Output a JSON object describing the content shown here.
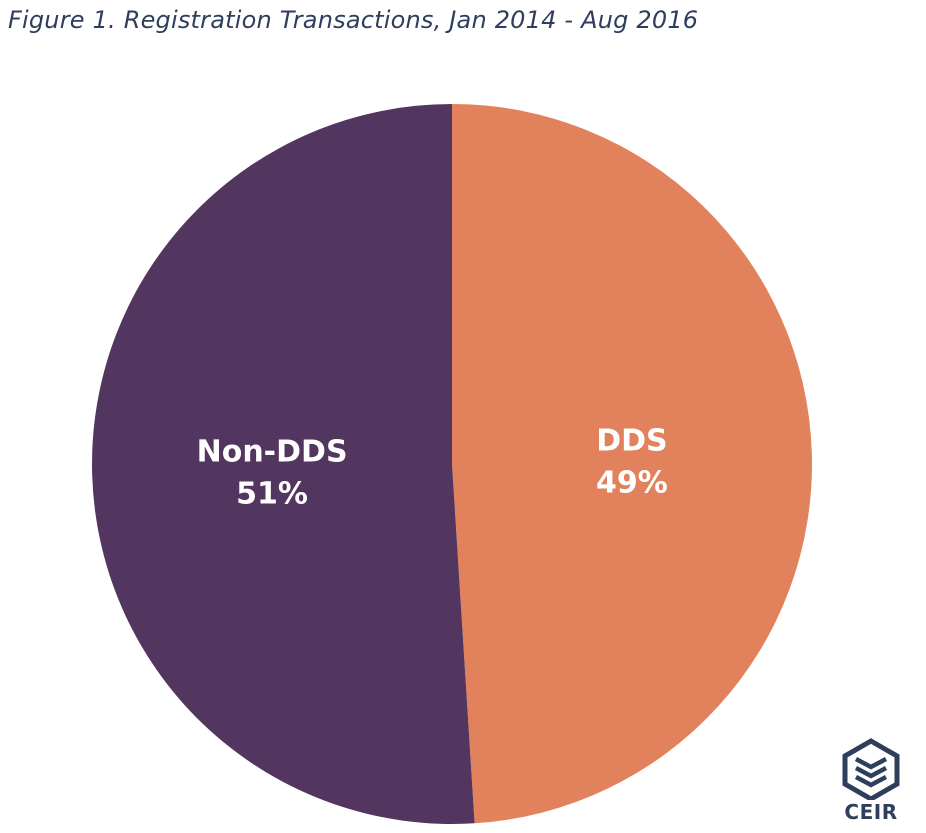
{
  "chart_data": {
    "type": "pie",
    "title": "Figure 1. Registration Transactions, Jan 2014 - Aug 2016",
    "slices": [
      {
        "label": "DDS",
        "value": 49,
        "value_label": "49%",
        "color": "#e2825c"
      },
      {
        "label": "Non-DDS",
        "value": 51,
        "value_label": "51%",
        "color": "#52365f"
      }
    ],
    "start_angle_deg": 0,
    "direction": "clockwise",
    "legend": "none"
  },
  "logo": {
    "text": "CEIR",
    "color": "#2e3e5c"
  }
}
